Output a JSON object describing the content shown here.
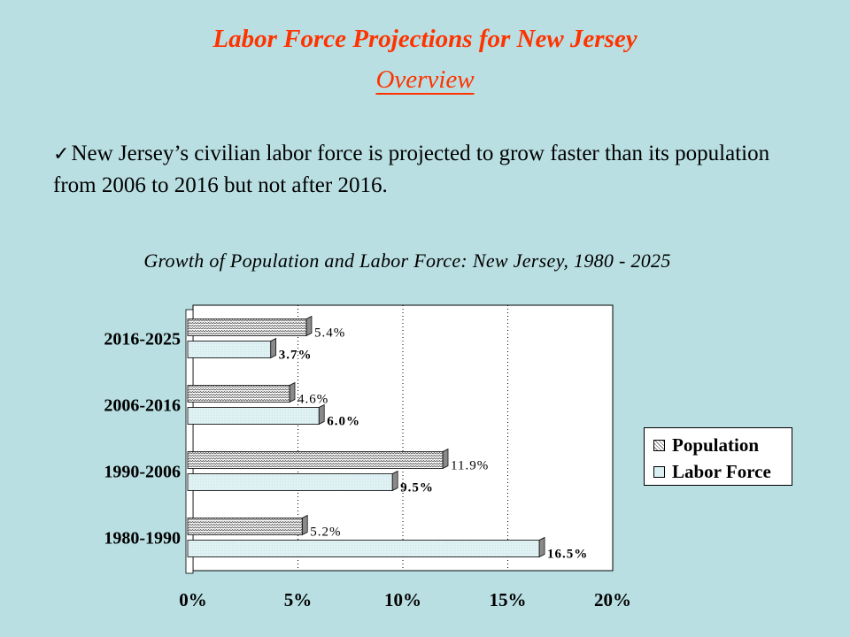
{
  "slide": {
    "title": "Labor Force Projections for New Jersey",
    "subtitle": "Overview",
    "bullet_text": "New Jersey’s civilian labor force is projected to grow faster than its population from 2006 to 2016 but not after 2016.",
    "bullet_icon": "check-icon"
  },
  "chart_data": {
    "type": "bar",
    "orientation": "horizontal",
    "title": "Growth of Population and Labor Force: New Jersey, 1980 - 2025",
    "categories": [
      "1980-1990",
      "1990-2006",
      "2006-2016",
      "2016-2025"
    ],
    "series": [
      {
        "name": "Population",
        "values": [
          5.2,
          11.9,
          4.6,
          5.4
        ],
        "labels": [
          "5.2%",
          "11.9%",
          "4.6%",
          "5.4%"
        ]
      },
      {
        "name": "Labor Force",
        "values": [
          16.5,
          9.5,
          6.0,
          3.7
        ],
        "labels": [
          "16.5%",
          "9.5%",
          "6.0%",
          "3.7%"
        ]
      }
    ],
    "xlim": [
      0,
      20
    ],
    "xticks": [
      "0%",
      "5%",
      "10%",
      "15%",
      "20%"
    ],
    "grid": "vertical-dotted",
    "legend_position": "right",
    "colors": {
      "plot_bg": "#ffffff",
      "labor_fill": "#d9eff1",
      "population_pattern": "#777777"
    }
  }
}
